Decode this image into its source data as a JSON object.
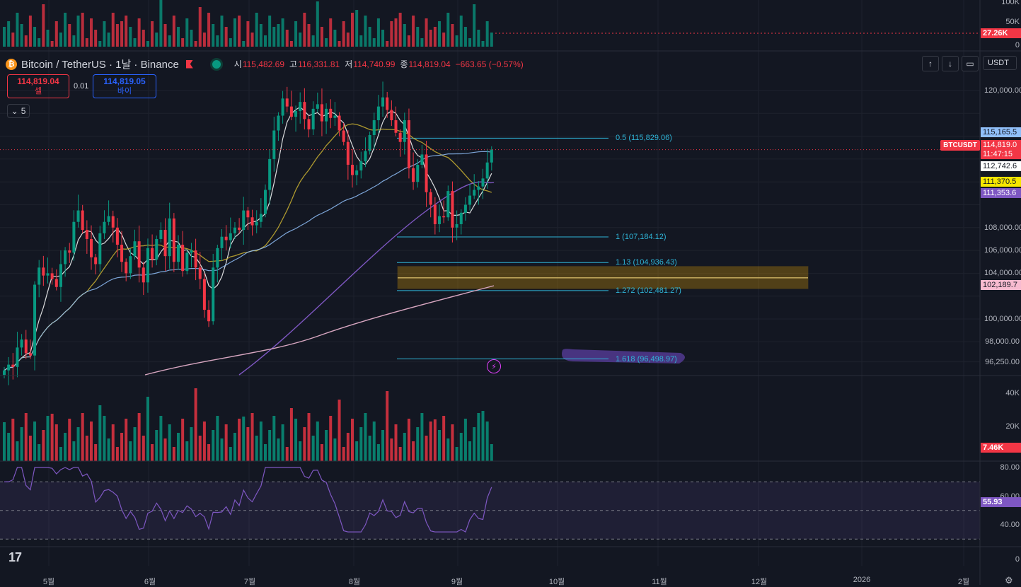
{
  "header": {
    "symbol": "Bitcoin / TetherUS · 1날 · Binance",
    "coin_icon": "bitcoin-icon",
    "ohlc": [
      {
        "k": "시",
        "v": "115,482.69"
      },
      {
        "k": "고",
        "v": "116,331.81"
      },
      {
        "k": "저",
        "v": "114,740.99"
      },
      {
        "k": "종",
        "v": "114,819.04"
      },
      {
        "k": "",
        "v": "−663.65 (−0.57%)"
      }
    ]
  },
  "trade": {
    "sell_price": "114,819.04",
    "sell_label": "셀",
    "spread": "0.01",
    "buy_price": "114,819.05",
    "buy_label": "바이"
  },
  "indicators_collapse": {
    "count": "5"
  },
  "toolbar": {
    "currency": "USDT"
  },
  "colors": {
    "up": "#089981",
    "down": "#f23645",
    "fib": "#2fb5d8",
    "rsi": "#7e57c2",
    "zone": "#f2a900"
  },
  "price_axis": [
    "120,000.00",
    "108,000.00",
    "106,000.00",
    "104,000.00",
    "100,000.00",
    "98,000.00",
    "96,250.00"
  ],
  "price_tags": [
    {
      "text": "115,165.5",
      "bg": "#90bff9",
      "fg": "#131722"
    },
    {
      "text": "114,819.0",
      "bg": "#f23645",
      "fg": "#ffffff"
    },
    {
      "text": "11:47:15",
      "bg": "#f23645",
      "fg": "#ffffff"
    },
    {
      "text": "112,742.6",
      "bg": "#ffffff",
      "fg": "#131722"
    },
    {
      "text": "111,370.5",
      "bg": "#f7e600",
      "fg": "#131722"
    },
    {
      "text": "111,353.6",
      "bg": "#7e57c2",
      "fg": "#ffffff"
    },
    {
      "text": "102,189.7",
      "bg": "#f8bbd0",
      "fg": "#131722"
    }
  ],
  "btc_tag": "BTCUSDT",
  "fib_levels": [
    {
      "label": "0.5 (115,829.06)",
      "price": 115829.06
    },
    {
      "label": "1 (107,184.12)",
      "price": 107184.12
    },
    {
      "label": "1.13 (104,936.43)",
      "price": 104936.43
    },
    {
      "label": "1.272 (102,481.27)",
      "price": 102481.27
    },
    {
      "label": "1.618 (96,498.97)",
      "price": 96498.97
    }
  ],
  "top_volume_axis": [
    "100K",
    "50K",
    "0"
  ],
  "top_volume_tag": "27.26K",
  "volume_axis": [
    "40K",
    "20K"
  ],
  "volume_tag": "7.46K",
  "rsi_axis": [
    "80.00",
    "60.00",
    "40.00",
    "0"
  ],
  "rsi_tag": "55.93",
  "months": [
    "5월",
    "6월",
    "7월",
    "8월",
    "9월",
    "10월",
    "11월",
    "12월",
    "2026",
    "2월"
  ],
  "logo": "17",
  "chart_data": {
    "type": "candlestick",
    "symbol": "BTCUSDT",
    "interval": "1D",
    "last_close": 114819.04,
    "fibonacci": [
      {
        "ratio": 0.5,
        "price": 115829.06
      },
      {
        "ratio": 1,
        "price": 107184.12
      },
      {
        "ratio": 1.13,
        "price": 104936.43
      },
      {
        "ratio": 1.272,
        "price": 102481.27
      },
      {
        "ratio": 1.618,
        "price": 96498.97
      }
    ],
    "moving_averages": [
      {
        "color": "#90bff9",
        "last": 115165.5
      },
      {
        "color": "#ffffff",
        "last": 112742.6
      },
      {
        "color": "#f7e600",
        "last": 111370.5
      },
      {
        "color": "#7e57c2",
        "last": 111353.6
      },
      {
        "color": "#f8bbd0",
        "last": 102189.7
      }
    ],
    "closes": [
      95500,
      96000,
      95800,
      97500,
      98200,
      97000,
      96800,
      103000,
      104500,
      103800,
      104000,
      103500,
      102800,
      104800,
      106000,
      105800,
      108500,
      109500,
      107800,
      107000,
      105400,
      104800,
      107500,
      108500,
      109000,
      108000,
      106500,
      105000,
      104000,
      105500,
      106800,
      104500,
      103200,
      106200,
      105200,
      107000,
      107800,
      105500,
      108800,
      105000,
      106500,
      104200,
      105800,
      106000,
      104500,
      103500,
      100800,
      99800,
      104500,
      106200,
      107200,
      106900,
      107500,
      108000,
      107800,
      109500,
      108900,
      108200,
      108500,
      109200,
      111300,
      114000,
      116500,
      117800,
      119300,
      118600,
      117700,
      118200,
      119000,
      117500,
      116600,
      118400,
      118800,
      117300,
      118400,
      117600,
      117800,
      116500,
      115500,
      113500,
      112600,
      113000,
      113800,
      114700,
      116100,
      117400,
      118600,
      119400,
      118300,
      117400,
      116300,
      115500,
      117400,
      113200,
      112000,
      113500,
      114400,
      111100,
      110000,
      108300,
      109000,
      108900,
      111200,
      108000,
      108300,
      109300,
      110000,
      110800,
      111300,
      111600,
      112300,
      113700,
      114819
    ]
  }
}
